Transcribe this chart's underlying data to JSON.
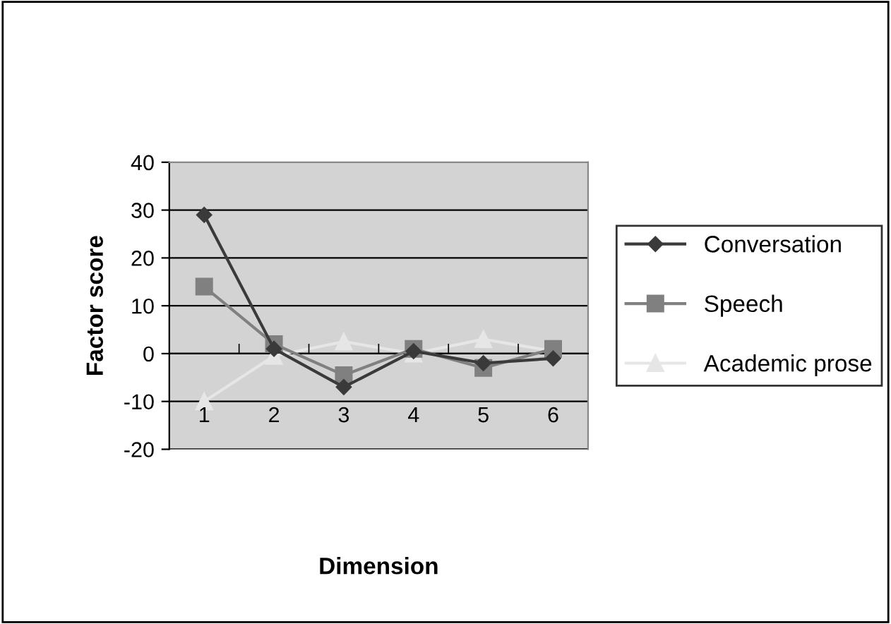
{
  "chart_data": {
    "type": "line",
    "xlabel": "Dimension",
    "ylabel": "Factor score",
    "categories": [
      "1",
      "2",
      "3",
      "4",
      "5",
      "6"
    ],
    "series": [
      {
        "name": "Conversation",
        "color": "#3a3a3a",
        "marker": "diamond",
        "values": [
          29,
          1,
          -7,
          0.5,
          -2,
          -1
        ]
      },
      {
        "name": "Speech",
        "color": "#808080",
        "marker": "square",
        "values": [
          14,
          2,
          -4.5,
          1,
          -3,
          1
        ]
      },
      {
        "name": "Academic prose",
        "color": "#e6e6e6",
        "marker": "triangle",
        "values": [
          -10,
          -0.5,
          2.5,
          0,
          3,
          0.5
        ]
      }
    ],
    "ylim": [
      -20,
      40
    ],
    "yticks": [
      -20,
      -10,
      0,
      10,
      20,
      30,
      40
    ],
    "grid": "y",
    "legend": "right"
  }
}
